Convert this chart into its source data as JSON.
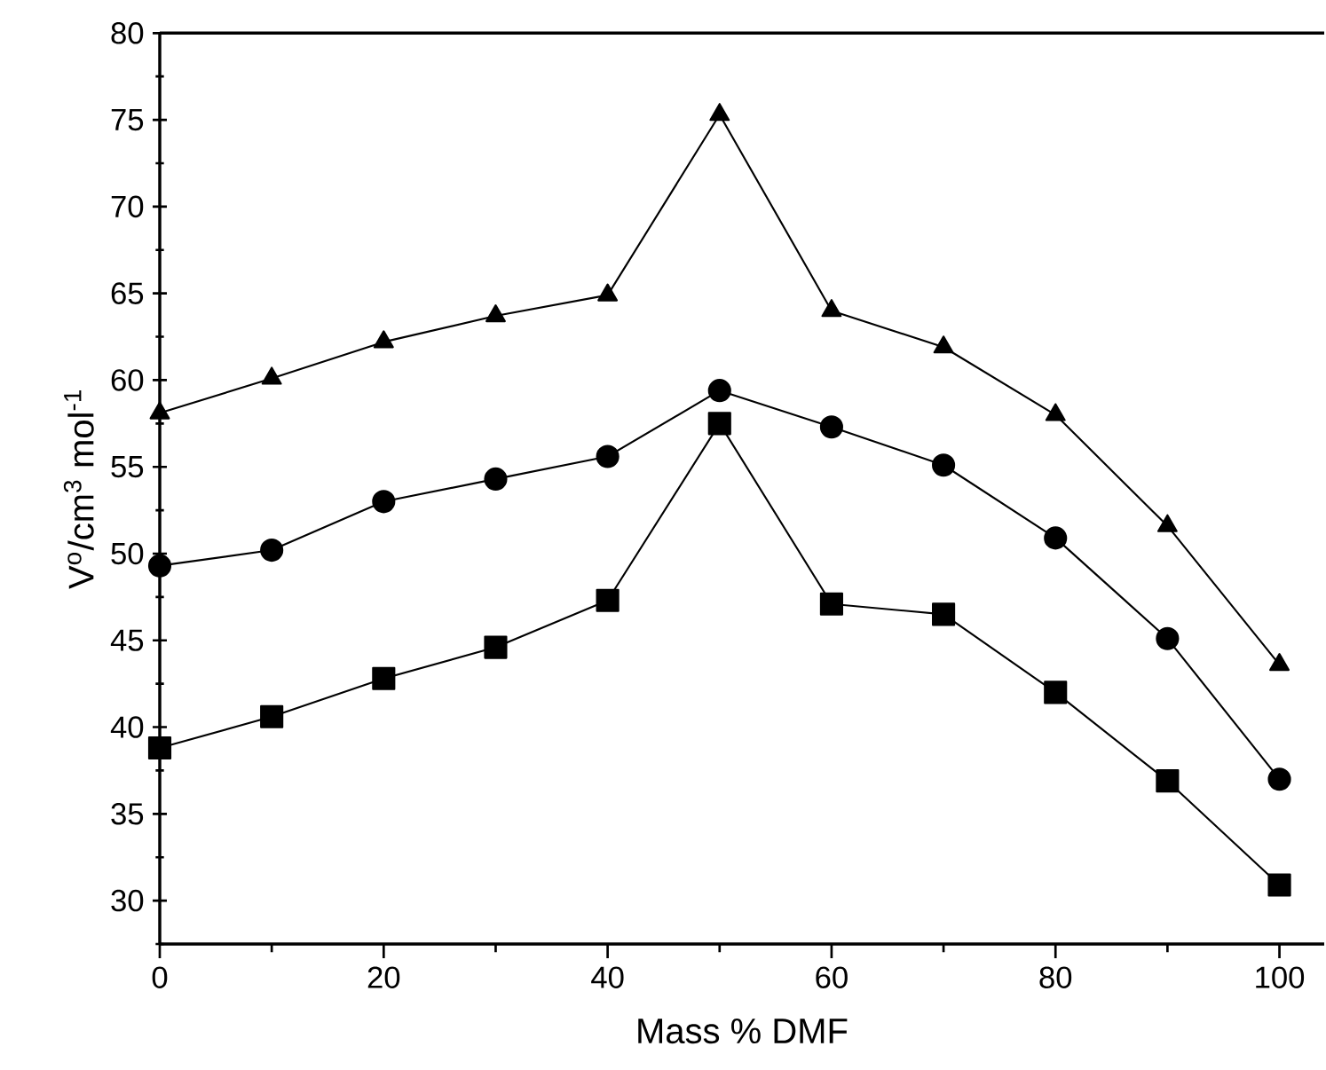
{
  "chart_data": {
    "type": "line",
    "xlabel": "Mass % DMF",
    "ylabel": "V$^{o}$/cm$^{3}$ mol$^{-1}$",
    "x": [
      0,
      10,
      20,
      30,
      40,
      50,
      60,
      70,
      80,
      90,
      100
    ],
    "series": [
      {
        "color": "#000000",
        "marker": "triangle",
        "values": [
          58.1,
          60.1,
          62.2,
          63.7,
          64.9,
          75.3,
          64.0,
          61.9,
          58.0,
          51.6,
          43.6
        ]
      },
      {
        "color": "#000000",
        "marker": "circle",
        "values": [
          49.3,
          50.2,
          53.0,
          54.3,
          55.6,
          59.4,
          57.3,
          55.1,
          50.9,
          45.1,
          37.0
        ]
      },
      {
        "color": "#000000",
        "marker": "square",
        "values": [
          38.8,
          40.6,
          42.8,
          44.6,
          47.3,
          57.5,
          47.1,
          46.5,
          42.0,
          36.9,
          30.9
        ]
      }
    ],
    "line_style": "solid",
    "xlim": [
      0,
      104
    ],
    "ylim": [
      27.5,
      80
    ],
    "xticks": [
      0,
      {
        "value": 10,
        "label": null
      },
      20,
      {
        "value": 30,
        "label": null
      },
      40,
      {
        "value": 50,
        "label": null
      },
      60,
      {
        "value": 70,
        "label": null
      },
      80,
      {
        "value": 90,
        "label": null
      },
      100
    ],
    "yticks": [
      {
        "value": 27.5,
        "label": null
      },
      30,
      {
        "value": 32.5,
        "label": null
      },
      35,
      {
        "value": 37.5,
        "label": null
      },
      40,
      {
        "value": 42.5,
        "label": null
      },
      45,
      {
        "value": 47.5,
        "label": null
      },
      50,
      {
        "value": 52.5,
        "label": null
      },
      55,
      {
        "value": 57.5,
        "label": null
      },
      60,
      {
        "value": 62.5,
        "label": null
      },
      65,
      {
        "value": 67.5,
        "label": null
      },
      70,
      {
        "value": 72.5,
        "label": null
      },
      75,
      {
        "value": 77.5,
        "label": null
      },
      80
    ],
    "grid": false
  }
}
